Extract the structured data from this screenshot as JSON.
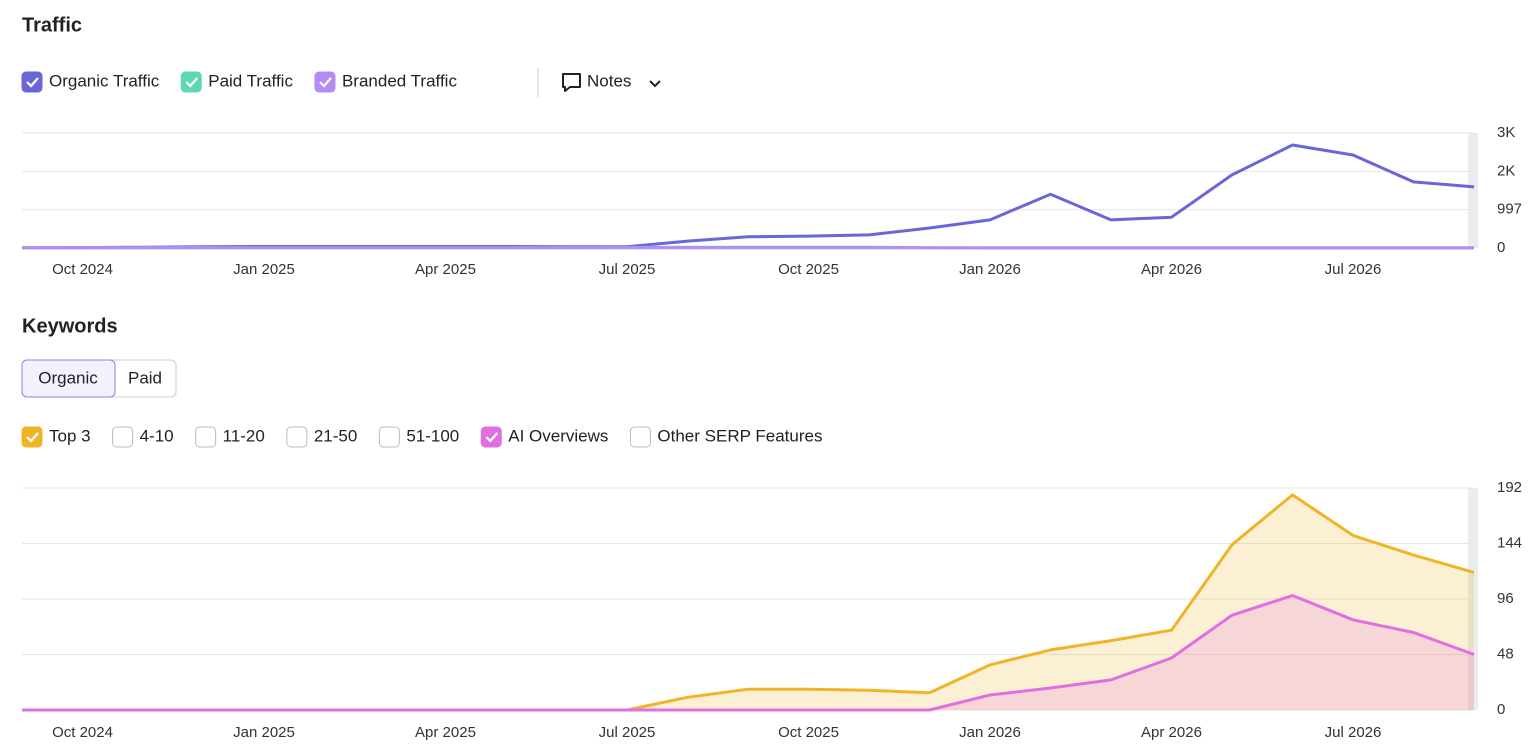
{
  "ui": {
    "notes": "Notes",
    "tabs": [
      "Organic",
      "Paid"
    ]
  },
  "chart_data": [
    {
      "type": "line",
      "title": "Traffic",
      "categories": [
        null,
        "Oct 2024",
        null,
        null,
        "Jan 2025",
        null,
        null,
        "Apr 2025",
        null,
        null,
        "Jul 2025",
        null,
        null,
        "Oct 2025",
        null,
        null,
        "Jan 2026",
        null,
        null,
        "Apr 2026",
        null,
        null,
        "Jul 2026",
        null,
        null
      ],
      "series": [
        {
          "name": "Organic Traffic",
          "color": "#6b66d8",
          "values": [
            5,
            10,
            20,
            30,
            40,
            40,
            40,
            40,
            40,
            35,
            30,
            180,
            290,
            310,
            340,
            520,
            730,
            1400,
            730,
            800,
            1900,
            2680,
            2420,
            1720,
            1590
          ]
        },
        {
          "name": "Paid Traffic",
          "color": "#5fd6b6",
          "values": [
            5,
            5,
            5,
            5,
            5,
            5,
            5,
            5,
            5,
            5,
            10,
            20,
            20,
            20,
            20,
            5,
            0,
            0,
            0,
            0,
            0,
            0,
            0,
            0,
            0
          ]
        },
        {
          "name": "Branded Traffic",
          "color": "#b58cf5",
          "values": [
            5,
            5,
            5,
            5,
            5,
            5,
            5,
            5,
            5,
            5,
            5,
            5,
            5,
            5,
            5,
            5,
            5,
            5,
            5,
            5,
            5,
            5,
            5,
            5,
            5
          ]
        }
      ],
      "ylim": [
        0,
        2991
      ],
      "yticks": [
        0,
        997,
        {
          "value": 1994,
          "label": "2K"
        },
        {
          "value": 2991,
          "label": "3K"
        }
      ],
      "grid": true,
      "area": false
    },
    {
      "type": "line",
      "title": "Keywords",
      "categories": [
        null,
        "Oct 2024",
        null,
        null,
        "Jan 2025",
        null,
        null,
        "Apr 2025",
        null,
        null,
        "Jul 2025",
        null,
        null,
        "Oct 2025",
        null,
        null,
        "Jan 2026",
        null,
        null,
        "Apr 2026",
        null,
        null,
        "Jul 2026",
        null,
        null
      ],
      "series": [
        {
          "name": "Top 3",
          "color": "#f0b429",
          "values": [
            0,
            0,
            0,
            0,
            0,
            0,
            0,
            0,
            0,
            0,
            0,
            11,
            18,
            18,
            17,
            15,
            39,
            52,
            60,
            69,
            143,
            186,
            151,
            134,
            119
          ]
        },
        {
          "name": "AI Overviews",
          "color": "#e070e0",
          "values": [
            0,
            0,
            0,
            0,
            0,
            0,
            0,
            0,
            0,
            0,
            0,
            0,
            0,
            0,
            0,
            0,
            13,
            19,
            26,
            45,
            82,
            99,
            78,
            67,
            48
          ]
        }
      ],
      "filters": [
        "4-10",
        "11-20",
        "21-50",
        "51-100",
        "Other SERP Features"
      ],
      "ylim": [
        0,
        192
      ],
      "yticks": [
        0,
        48,
        96,
        144,
        192
      ],
      "grid": true,
      "area": true
    }
  ]
}
